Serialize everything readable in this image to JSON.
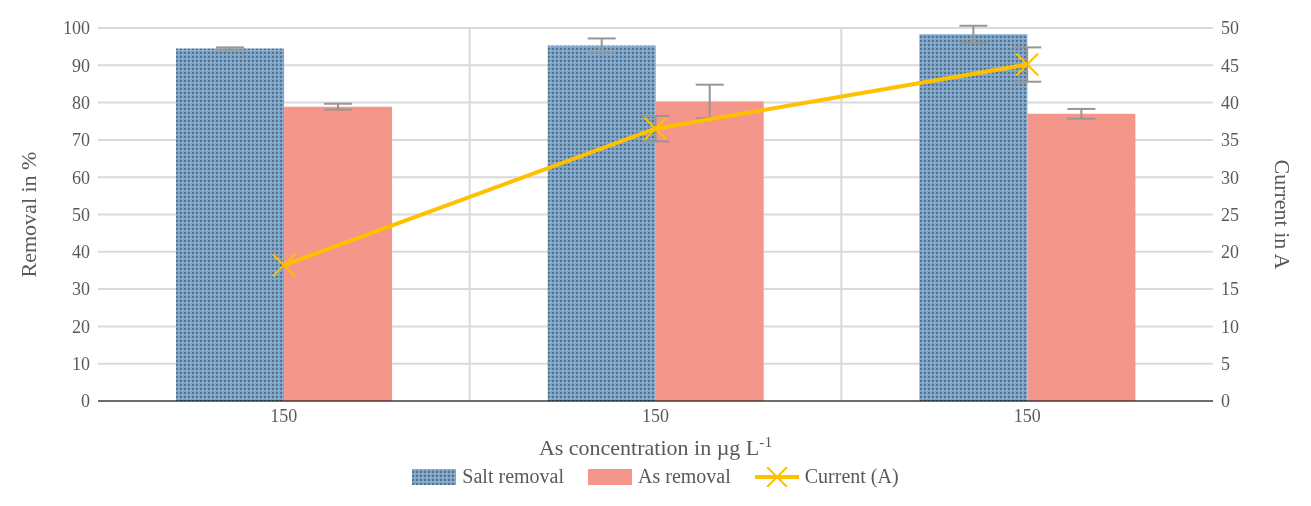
{
  "chart_data": {
    "type": "bar",
    "xlabel": "As concentration in µg L$^{-1}$",
    "ylabel": "Removal in %",
    "y2label": "Current in A",
    "categories": [
      "150",
      "150",
      "150"
    ],
    "series": [
      {
        "name": "Salt removal",
        "color": "#7ea3c4",
        "values": [
          94.5,
          95.3,
          98.3
        ],
        "errors": [
          0.3,
          1.9,
          2.3
        ]
      },
      {
        "name": "As removal",
        "color": "#f4968a",
        "values": [
          78.9,
          80.3,
          77.0
        ],
        "errors": [
          0.8,
          4.5,
          1.3
        ]
      },
      {
        "name": "Current (A)",
        "type": "line",
        "axis": "y2",
        "color": "#ffc000",
        "values": [
          18.2,
          36.5,
          45.1
        ],
        "errors": [
          null,
          1.7,
          2.3
        ],
        "marker": "cross",
        "line_style": "solid"
      }
    ],
    "ylim": [
      0,
      100
    ],
    "yticks": [
      0,
      10,
      20,
      30,
      40,
      50,
      60,
      70,
      80,
      90,
      100
    ],
    "y2lim": [
      0,
      50
    ],
    "y2ticks": [
      0,
      5,
      10,
      15,
      20,
      25,
      30,
      35,
      40,
      45,
      50
    ],
    "grid": true,
    "legend": "bottom"
  }
}
